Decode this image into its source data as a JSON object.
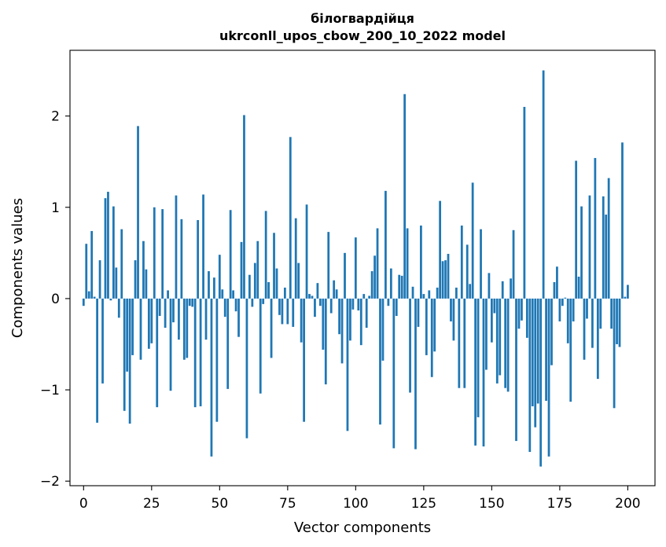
{
  "chart_data": {
    "type": "bar",
    "title_line1": "білогвардійця",
    "title_line2": "ukrconll_upos_cbow_200_10_2022 model",
    "xlabel": "Vector components",
    "ylabel": "Components values",
    "xlim": [
      -5,
      210
    ],
    "ylim": [
      -2.05,
      2.72
    ],
    "xticks": [
      0,
      25,
      50,
      75,
      100,
      125,
      150,
      175,
      200
    ],
    "xtick_labels": [
      "0",
      "25",
      "50",
      "75",
      "100",
      "125",
      "150",
      "175",
      "200"
    ],
    "yticks": [
      -2,
      -1,
      0,
      1,
      2
    ],
    "ytick_labels": [
      "−2",
      "−1",
      "0",
      "1",
      "2"
    ],
    "bar_color": "#1f77b4",
    "values": [
      -0.08,
      0.6,
      0.08,
      0.74,
      0.02,
      -1.36,
      0.42,
      -0.93,
      1.1,
      1.17,
      -0.02,
      1.01,
      0.34,
      -0.21,
      0.76,
      -1.23,
      -0.8,
      -1.37,
      -0.62,
      0.42,
      1.89,
      -0.67,
      0.63,
      0.32,
      -0.55,
      -0.49,
      1.0,
      -1.19,
      -0.19,
      0.98,
      -0.32,
      0.09,
      -1.01,
      -0.26,
      1.13,
      -0.45,
      0.87,
      -0.67,
      -0.65,
      -0.08,
      -0.09,
      -1.19,
      0.86,
      -1.18,
      1.14,
      -0.45,
      0.3,
      -1.73,
      0.23,
      -1.35,
      0.48,
      0.1,
      -0.2,
      -0.99,
      0.97,
      0.09,
      -0.14,
      -0.42,
      0.62,
      2.01,
      -1.53,
      0.26,
      -0.09,
      0.39,
      0.63,
      -1.04,
      -0.06,
      0.96,
      0.18,
      -0.65,
      0.72,
      0.33,
      -0.18,
      -0.28,
      0.12,
      -0.28,
      1.77,
      -0.31,
      0.88,
      0.39,
      -0.48,
      -1.35,
      1.03,
      0.05,
      0.03,
      -0.2,
      0.17,
      -0.08,
      -0.56,
      -0.94,
      0.73,
      -0.16,
      0.2,
      0.1,
      -0.39,
      -0.71,
      0.5,
      -1.45,
      -0.46,
      -0.12,
      0.67,
      -0.13,
      -0.51,
      0.05,
      -0.32,
      0.03,
      0.3,
      0.47,
      0.77,
      -1.38,
      -0.68,
      1.18,
      -0.08,
      0.33,
      -1.64,
      -0.19,
      0.26,
      0.25,
      2.24,
      0.77,
      -1.03,
      0.13,
      -1.65,
      -0.31,
      0.8,
      0.05,
      -0.62,
      0.09,
      -0.86,
      -0.58,
      0.12,
      1.07,
      0.41,
      0.42,
      0.49,
      -0.25,
      -0.46,
      0.12,
      -0.98,
      0.8,
      -0.98,
      0.59,
      0.16,
      1.27,
      -1.61,
      -1.3,
      0.76,
      -1.62,
      -0.78,
      0.28,
      -0.48,
      -0.16,
      -0.93,
      -0.84,
      0.19,
      -0.98,
      -1.02,
      0.22,
      0.75,
      -1.56,
      -0.33,
      -0.24,
      2.1,
      -0.43,
      -1.68,
      -1.18,
      -1.41,
      -1.15,
      -1.84,
      2.5,
      -1.12,
      -1.73,
      -0.73,
      0.18,
      0.35,
      -0.25,
      -0.08,
      0.01,
      -0.49,
      -1.13,
      -0.25,
      1.51,
      0.24,
      1.01,
      -0.67,
      -0.22,
      1.13,
      -0.54,
      1.54,
      -0.88,
      -0.33,
      1.12,
      0.92,
      1.32,
      -0.33,
      -1.2,
      -0.5,
      -0.53,
      1.71,
      0.02,
      0.15
    ]
  }
}
